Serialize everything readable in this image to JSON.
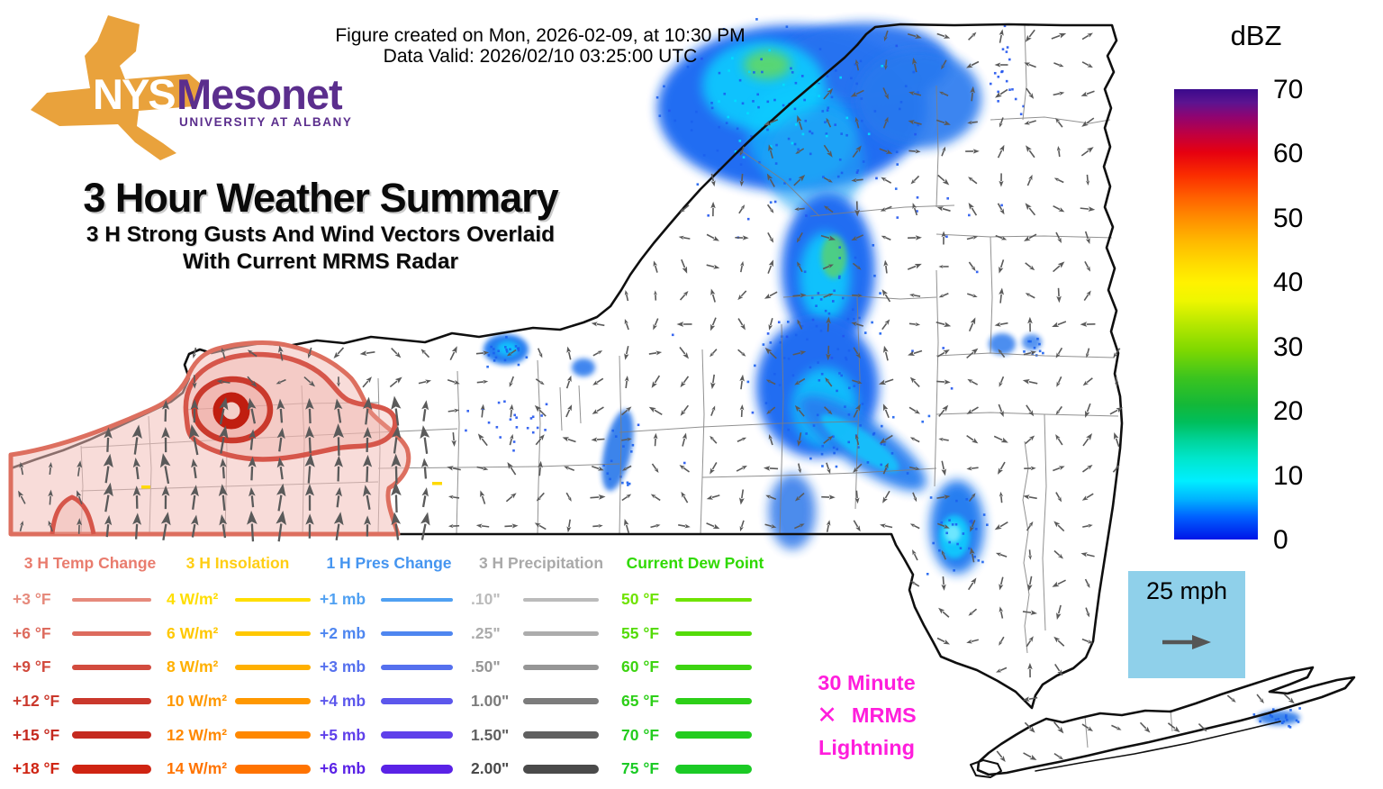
{
  "header": {
    "line1": "Figure created on Mon, 2026-02-09, at 10:30 PM",
    "line2": "Data Valid: 2026/02/10 03:25:00 UTC"
  },
  "logo": {
    "nys": "NYS",
    "mesonet": "Mesonet",
    "tagline": "UNIVERSITY AT ALBANY",
    "state_color": "#E9A23C",
    "text_color": "#5B2E8D"
  },
  "title": {
    "main": "3 Hour Weather Summary",
    "sub1": "3 H Strong Gusts And Wind Vectors Overlaid",
    "sub2": "With Current MRMS Radar"
  },
  "legend": {
    "columns": [
      {
        "title": "3 H Temp Change",
        "title_color": "#E97C6E",
        "rows": [
          {
            "label": "+3 °F",
            "color": "#E68A7C",
            "weight": 4
          },
          {
            "label": "+6 °F",
            "color": "#DD6B5E",
            "weight": 5
          },
          {
            "label": "+9 °F",
            "color": "#D24B3E",
            "weight": 6
          },
          {
            "label": "+12 °F",
            "color": "#CA382C",
            "weight": 7
          },
          {
            "label": "+15 °F",
            "color": "#C52A1F",
            "weight": 8.5
          },
          {
            "label": "+18 °F",
            "color": "#CF2412",
            "weight": 10
          }
        ]
      },
      {
        "title": "3 H Insolation",
        "title_color": "#FFCE14",
        "rows": [
          {
            "label": "4 W/m²",
            "color": "#FFDE00",
            "weight": 4
          },
          {
            "label": "6 W/m²",
            "color": "#FFC800",
            "weight": 5
          },
          {
            "label": "8 W/m²",
            "color": "#FFB000",
            "weight": 6
          },
          {
            "label": "10 W/m²",
            "color": "#FF9800",
            "weight": 7
          },
          {
            "label": "12 W/m²",
            "color": "#FF8800",
            "weight": 8.5
          },
          {
            "label": "14 W/m²",
            "color": "#FF7300",
            "weight": 10
          }
        ]
      },
      {
        "title": "1 H Pres Change",
        "title_color": "#4595F0",
        "rows": [
          {
            "label": "+1 mb",
            "color": "#4FA0F2",
            "weight": 4
          },
          {
            "label": "+2 mb",
            "color": "#4E86F0",
            "weight": 5
          },
          {
            "label": "+3 mb",
            "color": "#5570EE",
            "weight": 6
          },
          {
            "label": "+4 mb",
            "color": "#5C57EC",
            "weight": 7
          },
          {
            "label": "+5 mb",
            "color": "#5F40EA",
            "weight": 8.5
          },
          {
            "label": "+6 mb",
            "color": "#5A22E6",
            "weight": 10
          }
        ]
      },
      {
        "title": "3 H Precipitation",
        "title_color": "#A9A9A9",
        "rows": [
          {
            "label": ".10\"",
            "color": "#BBBBBB",
            "weight": 4
          },
          {
            "label": ".25\"",
            "color": "#ACACAC",
            "weight": 5
          },
          {
            "label": ".50\"",
            "color": "#969696",
            "weight": 6
          },
          {
            "label": "1.00\"",
            "color": "#7C7C7C",
            "weight": 7
          },
          {
            "label": "1.50\"",
            "color": "#606060",
            "weight": 8.5
          },
          {
            "label": "2.00\"",
            "color": "#4A4A4A",
            "weight": 10
          }
        ]
      },
      {
        "title": "Current Dew Point",
        "title_color": "#2FD900",
        "rows": [
          {
            "label": "50 °F",
            "color": "#6FE300",
            "weight": 4
          },
          {
            "label": "55 °F",
            "color": "#54DB08",
            "weight": 5
          },
          {
            "label": "60 °F",
            "color": "#3DD411",
            "weight": 6
          },
          {
            "label": "65 °F",
            "color": "#2DCF18",
            "weight": 7
          },
          {
            "label": "70 °F",
            "color": "#23CC1E",
            "weight": 8.5
          },
          {
            "label": "75 °F",
            "color": "#1BCA25",
            "weight": 10
          }
        ]
      }
    ]
  },
  "colorbar": {
    "title": "dBZ",
    "ticks": [
      "70",
      "60",
      "50",
      "40",
      "30",
      "20",
      "10",
      "0"
    ],
    "gradient_stops": [
      {
        "pct": 0,
        "color": "#0014E8"
      },
      {
        "pct": 5,
        "color": "#0060FF"
      },
      {
        "pct": 9,
        "color": "#00B4FF"
      },
      {
        "pct": 13,
        "color": "#00EEFF"
      },
      {
        "pct": 18,
        "color": "#00E6CC"
      },
      {
        "pct": 22,
        "color": "#00D49A"
      },
      {
        "pct": 26,
        "color": "#00BE5C"
      },
      {
        "pct": 30,
        "color": "#14B838"
      },
      {
        "pct": 36,
        "color": "#3CC41E"
      },
      {
        "pct": 42,
        "color": "#7ED800"
      },
      {
        "pct": 48,
        "color": "#B8E800"
      },
      {
        "pct": 53,
        "color": "#EEF600"
      },
      {
        "pct": 57,
        "color": "#FFF200"
      },
      {
        "pct": 61,
        "color": "#FFDC00"
      },
      {
        "pct": 66,
        "color": "#FFBA00"
      },
      {
        "pct": 71,
        "color": "#FF9000"
      },
      {
        "pct": 76,
        "color": "#FF6000"
      },
      {
        "pct": 81,
        "color": "#FA2C00"
      },
      {
        "pct": 86,
        "color": "#E60010"
      },
      {
        "pct": 90,
        "color": "#C00040"
      },
      {
        "pct": 94,
        "color": "#8E0472"
      },
      {
        "pct": 97,
        "color": "#5C1490"
      },
      {
        "pct": 100,
        "color": "#3A0A8C"
      }
    ]
  },
  "wind_reference": {
    "label": "25 mph",
    "box_color": "#8FD0EA",
    "arrow_color": "#555555"
  },
  "lightning_legend": {
    "marker": "✕",
    "line1": "30 Minute",
    "line2": "MRMS",
    "line3": "Lightning",
    "color": "#FF1EDC"
  }
}
